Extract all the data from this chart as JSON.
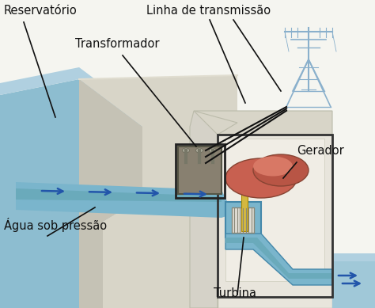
{
  "labels": {
    "reservatorio": "Reservatório",
    "transformador": "Transformador",
    "linha_transmissao": "Linha de transmissão",
    "gerador": "Gerador",
    "agua_pressao": "Água sob pressão",
    "turbina": "Turbina"
  },
  "colors": {
    "bg_white": "#f5f5f0",
    "water_blue": "#8dbdd0",
    "water_light": "#b0d0e0",
    "water_dark": "#6aaabb",
    "dam_light": "#d8d5c8",
    "dam_mid": "#c5c2b5",
    "dam_dark": "#b0ad9f",
    "powerhouse_light": "#e8e5dc",
    "powerhouse_mid": "#d5d2c8",
    "powerhouse_dark": "#c0bdb0",
    "channel_blue": "#7ab5cc",
    "channel_light": "#9ecadc",
    "generator_red": "#c86050",
    "generator_red2": "#b85545",
    "transformer_dark": "#888070",
    "transformer_mid": "#9a9282",
    "shaft_yellow": "#d4b840",
    "turbine_white": "#e0ddd5",
    "tower_blue": "#8ab0cc",
    "arrow_blue": "#2255aa",
    "line_black": "#111111",
    "text_black": "#111111",
    "lower_water": "#a0c8d8",
    "ground_green": "#c8c8b0"
  },
  "label_fontsize": 10.5
}
